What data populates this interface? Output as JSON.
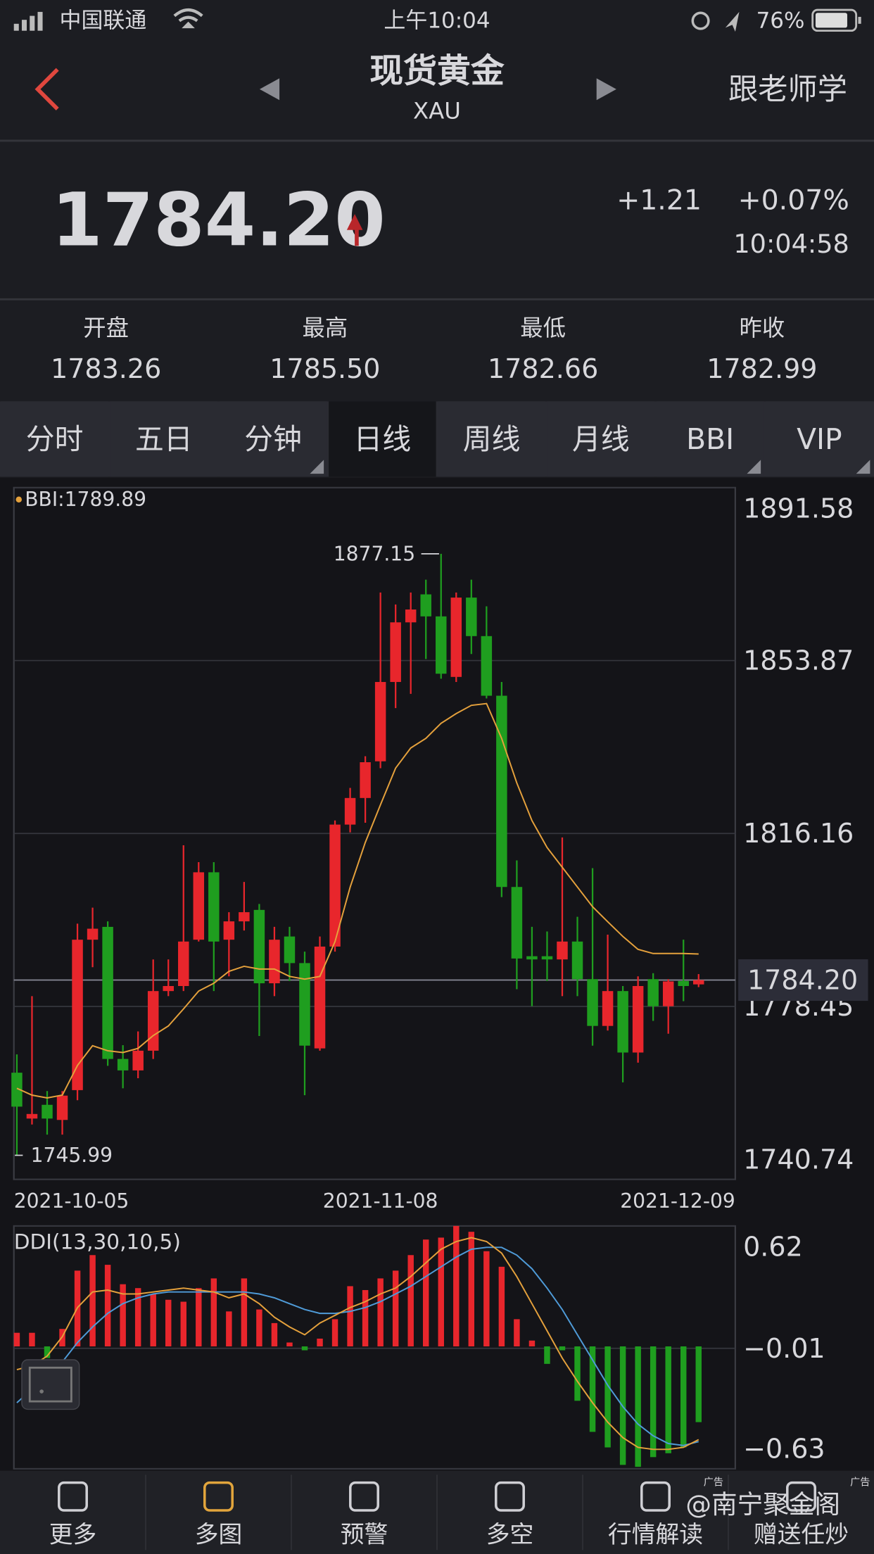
{
  "status_bar": {
    "carrier": "中国联通",
    "time": "上午10:04",
    "battery": "76%"
  },
  "header": {
    "title": "现货黄金",
    "subtitle": "XAU",
    "action": "跟老师学"
  },
  "quote": {
    "price": "1784.20",
    "change": "+1.21",
    "change_percent": "+0.07%",
    "time": "10:04:58"
  },
  "stats": [
    {
      "label": "开盘",
      "value": "1783.26"
    },
    {
      "label": "最高",
      "value": "1785.50"
    },
    {
      "label": "最低",
      "value": "1782.66"
    },
    {
      "label": "昨收",
      "value": "1782.99"
    }
  ],
  "tabs": [
    "分时",
    "五日",
    "分钟",
    "日线",
    "周线",
    "月线",
    "BBI",
    "VIP"
  ],
  "selected_tab": 3,
  "chart_data": [
    {
      "type": "candlestick",
      "categories": [
        "2021-10-05",
        null,
        null,
        null,
        null,
        null,
        null,
        null,
        null,
        null,
        null,
        null,
        null,
        null,
        null,
        null,
        null,
        null,
        null,
        null,
        null,
        null,
        null,
        null,
        "2021-11-08",
        null,
        null,
        null,
        null,
        null,
        null,
        null,
        null,
        null,
        null,
        null,
        null,
        null,
        null,
        null,
        null,
        null,
        null,
        null,
        null,
        "2021-12-09"
      ],
      "open": [
        1764,
        1754,
        1757,
        1753.7,
        1760.2,
        1793,
        1795.8,
        1767,
        1764.5,
        1768.8,
        1781.8,
        1782.9,
        1793,
        1807.7,
        1793,
        1797,
        1799.5,
        1783.5,
        1793.7,
        1787.9,
        1769.3,
        1791.5,
        1818.1,
        1823.9,
        1831.9,
        1849.2,
        1862.2,
        1868.3,
        1863.5,
        1850.3,
        1867.6,
        1859.2,
        1846.2,
        1804.5,
        1789.4,
        1789.4,
        1788.7,
        1792.6,
        1784.4,
        1774.2,
        1781.8,
        1768.4,
        1784.4,
        1778.5,
        1784,
        1783.26
      ],
      "high": [
        1768,
        1780.7,
        1760,
        1760,
        1796.5,
        1800,
        1797,
        1770,
        1773,
        1788.7,
        1788.7,
        1813.6,
        1809.9,
        1809.9,
        1799,
        1805.6,
        1800.8,
        1795.8,
        1795.8,
        1790.4,
        1793.7,
        1819,
        1826.1,
        1833,
        1868.7,
        1866.1,
        1868.7,
        1871.5,
        1877.15,
        1868.7,
        1871.5,
        1865.7,
        1849.2,
        1810.3,
        1795.8,
        1794.8,
        1815.3,
        1798,
        1808.6,
        1794.1,
        1782.9,
        1785,
        1785.7,
        1784.4,
        1793,
        1785.5
      ],
      "low": [
        1745.99,
        1752.7,
        1750.5,
        1750.5,
        1758,
        1787,
        1765.5,
        1760.6,
        1762.8,
        1767,
        1780.7,
        1781.8,
        1792.6,
        1781.8,
        1785,
        1795,
        1772,
        1780.7,
        1784,
        1759.1,
        1768.8,
        1790.4,
        1816.4,
        1818.5,
        1830.4,
        1843.5,
        1846.6,
        1854.2,
        1849.9,
        1849.2,
        1855.3,
        1845.6,
        1802.3,
        1782.2,
        1778.5,
        1784,
        1780.7,
        1780.7,
        1769.9,
        1773.2,
        1761.9,
        1766.2,
        1775.3,
        1772.5,
        1779.6,
        1782.66
      ],
      "close": [
        1756.6,
        1755,
        1754,
        1759,
        1793,
        1795.4,
        1767,
        1764.5,
        1768.8,
        1781.8,
        1782.9,
        1792.6,
        1807.7,
        1792.6,
        1797,
        1799,
        1783.5,
        1793,
        1787.9,
        1769.9,
        1791.5,
        1818.1,
        1823.9,
        1831.7,
        1849.2,
        1862.2,
        1865,
        1863.5,
        1851,
        1867.6,
        1859.2,
        1846.2,
        1804.5,
        1788.9,
        1788.7,
        1788.7,
        1792.6,
        1784.4,
        1774.2,
        1781.8,
        1768.4,
        1782.9,
        1778.5,
        1783.9,
        1782.9,
        1784.2
      ],
      "up_color": "#e8262c",
      "down_color": "#1f9e1f",
      "series": [
        {
          "name": "BBI:1789.89",
          "color": "#e5a13c",
          "values": [
            1760.6,
            1759.1,
            1758.5,
            1759.1,
            1765.6,
            1769.9,
            1768.8,
            1768.4,
            1769.3,
            1772.1,
            1774.2,
            1777.9,
            1781.8,
            1783.5,
            1786.1,
            1787.2,
            1786.6,
            1786.6,
            1785,
            1784.4,
            1785,
            1792.6,
            1804.5,
            1814.2,
            1822.4,
            1830.4,
            1834.8,
            1836.9,
            1840.2,
            1842.3,
            1844.1,
            1844.5,
            1836.9,
            1827.2,
            1819,
            1813.1,
            1808.8,
            1804.5,
            1800.2,
            1796.9,
            1793.7,
            1790.9,
            1790,
            1790,
            1790,
            1789.89
          ]
        }
      ],
      "ylim": [
        1740.74,
        1891.58
      ],
      "yticks": [
        1740.74,
        1778.45,
        1816.16,
        1853.87,
        1891.58
      ],
      "grid": true,
      "current_price": {
        "value": 1784.2,
        "label": "1784.20"
      },
      "max": 1877.15,
      "min": 1745.99
    },
    {
      "type": "bar",
      "title": "DDI(13,30,10,5)",
      "values": [
        0.07,
        0.07,
        -0.06,
        0.09,
        0.39,
        0.47,
        0.42,
        0.32,
        0.3,
        0.27,
        0.24,
        0.23,
        0.3,
        0.35,
        0.18,
        0.35,
        0.19,
        0.12,
        0.02,
        -0.02,
        0.04,
        0.14,
        0.31,
        0.29,
        0.35,
        0.39,
        0.47,
        0.55,
        0.56,
        0.62,
        0.59,
        0.49,
        0.41,
        0.14,
        0.03,
        -0.09,
        -0.02,
        -0.28,
        -0.44,
        -0.52,
        -0.61,
        -0.62,
        -0.57,
        -0.55,
        -0.52,
        -0.39
      ],
      "up_color": "#e8262c",
      "down_color": "#1f9e1f",
      "series": [
        {
          "color": "#4f9bd8",
          "values": [
            -0.29,
            -0.22,
            -0.15,
            -0.08,
            0.02,
            0.1,
            0.17,
            0.22,
            0.25,
            0.27,
            0.28,
            0.28,
            0.28,
            0.28,
            0.28,
            0.28,
            0.27,
            0.25,
            0.22,
            0.19,
            0.17,
            0.17,
            0.18,
            0.2,
            0.23,
            0.27,
            0.31,
            0.36,
            0.41,
            0.46,
            0.5,
            0.51,
            0.51,
            0.47,
            0.4,
            0.3,
            0.19,
            0.06,
            -0.07,
            -0.2,
            -0.31,
            -0.4,
            -0.46,
            -0.5,
            -0.51,
            -0.49
          ]
        },
        {
          "color": "#e5a13c",
          "values": [
            -0.12,
            -0.1,
            -0.05,
            0.05,
            0.2,
            0.28,
            0.29,
            0.27,
            0.27,
            0.28,
            0.29,
            0.3,
            0.29,
            0.28,
            0.25,
            0.27,
            0.22,
            0.15,
            0.1,
            0.06,
            0.12,
            0.16,
            0.2,
            0.23,
            0.27,
            0.3,
            0.36,
            0.43,
            0.5,
            0.54,
            0.56,
            0.54,
            0.48,
            0.36,
            0.22,
            0.08,
            -0.06,
            -0.18,
            -0.29,
            -0.39,
            -0.47,
            -0.52,
            -0.53,
            -0.53,
            -0.52,
            -0.48
          ]
        }
      ],
      "ylim": [
        -0.63,
        0.62
      ],
      "yticks": [
        0.62,
        {
          "value": -0.01,
          "label": "−0.01"
        },
        {
          "value": -0.63,
          "label": "−0.63"
        }
      ],
      "grid": true
    }
  ],
  "nav": [
    "更多",
    "多图",
    "预警",
    "多空",
    "行情解读",
    "赠送任炒"
  ],
  "watermark": "@南宁聚金阁",
  "ad_label": "广告"
}
